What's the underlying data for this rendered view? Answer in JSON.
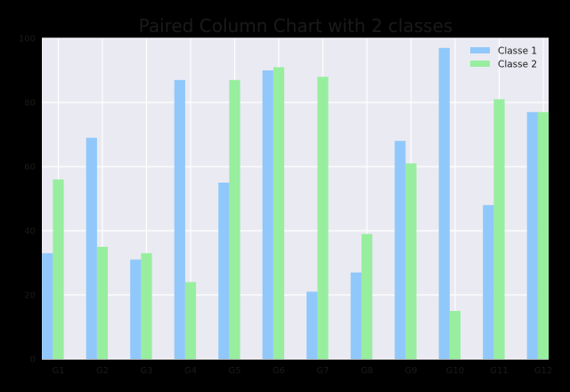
{
  "chart_data": {
    "type": "bar",
    "title": "Paired Column Chart with 2 classes",
    "xlabel": "",
    "ylabel": "",
    "categories": [
      "G1",
      "G2",
      "G3",
      "G4",
      "G5",
      "G6",
      "G7",
      "G8",
      "G9",
      "G10",
      "G11",
      "G12"
    ],
    "series": [
      {
        "name": "Classe 1",
        "color": "#90c8fb",
        "values": [
          33,
          69,
          31,
          87,
          55,
          90,
          21,
          27,
          68,
          97,
          48,
          77
        ]
      },
      {
        "name": "Classe 2",
        "color": "#98ee9f",
        "values": [
          56,
          35,
          33,
          24,
          87,
          91,
          88,
          39,
          61,
          15,
          81,
          77
        ]
      }
    ],
    "ylim": [
      0,
      100
    ],
    "yticks": [
      0,
      20,
      40,
      60,
      80,
      100
    ],
    "grid": true,
    "legend": "top-right",
    "colors": {
      "background": "#000000",
      "plot_area": "#eaeaf2",
      "grid": "#ffffff",
      "text": "#1a1a1a"
    }
  }
}
